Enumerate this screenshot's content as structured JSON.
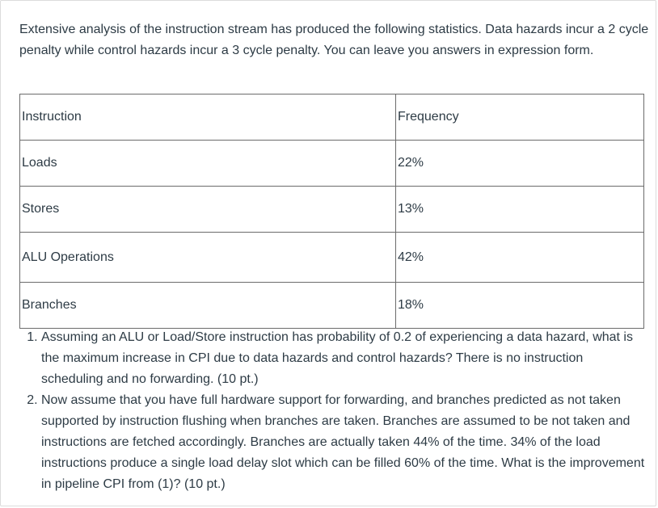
{
  "intro": "Extensive analysis of the instruction stream has produced the following statistics. Data hazards incur a 2 cycle penalty while control hazards incur a 3 cycle penalty. You can leave you answers in expression form.",
  "table": {
    "headers": [
      "Instruction",
      "Frequency"
    ],
    "rows": [
      [
        "Loads",
        "22%"
      ],
      [
        "Stores",
        "13%"
      ],
      [
        "ALU Operations",
        "42%"
      ],
      [
        "Branches",
        "18%"
      ]
    ]
  },
  "questions": [
    "Assuming an ALU or Load/Store instruction has probability of 0.2 of experiencing a data hazard, what is the maximum increase in CPI due to data hazards and control hazards? There is no instruction scheduling and no forwarding. (10 pt.)",
    "Now assume that you have full hardware support for forwarding, and branches predicted as not taken supported by instruction flushing when branches are taken. Branches are assumed to be not taken and instructions are fetched accordingly. Branches are actually taken 44% of the time. 34% of the load instructions produce a single load delay slot which can be filled 60% of the time. What is the improvement in pipeline CPI from (1)? (10 pt.)"
  ]
}
